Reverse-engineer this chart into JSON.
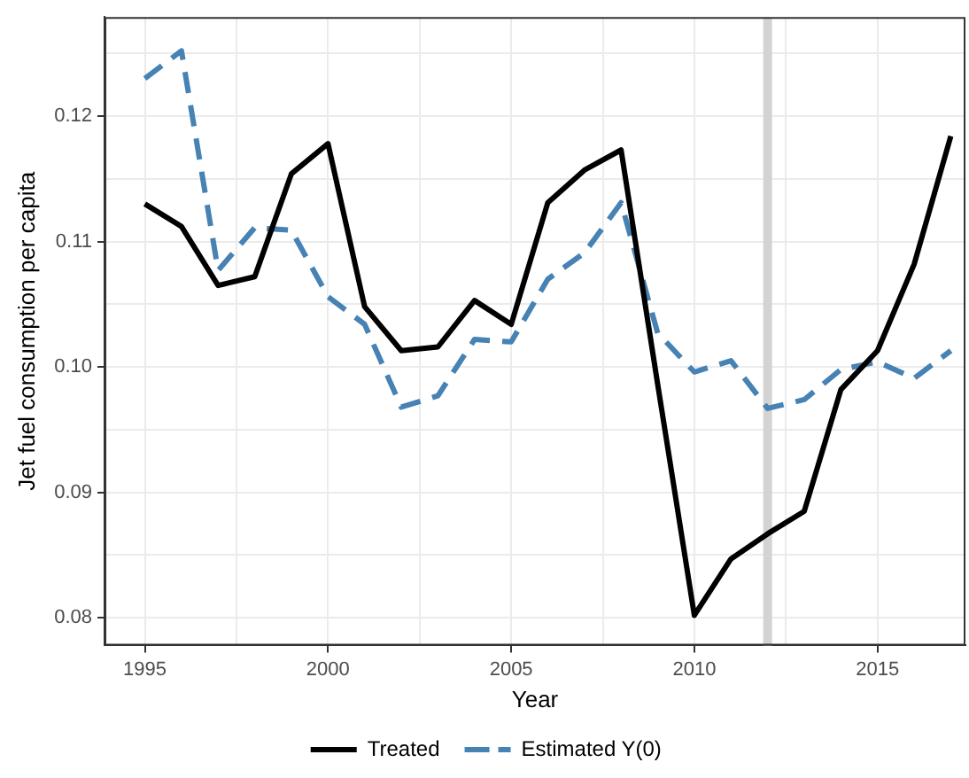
{
  "chart_data": {
    "type": "line",
    "xlabel": "Year",
    "ylabel": "Jet fuel consumption per capita",
    "x": [
      1995,
      1996,
      1997,
      1998,
      1999,
      2000,
      2001,
      2002,
      2003,
      2004,
      2005,
      2006,
      2007,
      2008,
      2009,
      2010,
      2011,
      2012,
      2013,
      2014,
      2015,
      2016,
      2017
    ],
    "series": [
      {
        "name": "Treated",
        "color": "#000000",
        "line_style": "solid",
        "values": [
          0.113,
          0.1112,
          0.1065,
          0.1072,
          0.1154,
          0.1178,
          0.1048,
          0.1013,
          0.1016,
          0.1053,
          0.1034,
          0.1131,
          0.1157,
          0.1173,
          0.0986,
          0.0802,
          0.0847,
          0.0867,
          0.0885,
          0.0982,
          0.1013,
          0.1082,
          0.1184
        ]
      },
      {
        "name": "Estimated Y(0)",
        "color": "#4682b4",
        "line_style": "dashed",
        "values": [
          0.123,
          0.1252,
          0.1077,
          0.1111,
          0.1109,
          0.1056,
          0.1034,
          0.0968,
          0.0977,
          0.1022,
          0.102,
          0.107,
          0.1091,
          0.1131,
          0.1027,
          0.0996,
          0.1005,
          0.0967,
          0.0974,
          0.0998,
          0.1004,
          0.0991,
          0.1013
        ]
      }
    ],
    "xlim": [
      1993.9,
      2017.4
    ],
    "xticks": [
      {
        "value": 1995,
        "label": "1995"
      },
      {
        "value": 1997.5,
        "label": null
      },
      {
        "value": 2000,
        "label": "2000"
      },
      {
        "value": 2002.5,
        "label": null
      },
      {
        "value": 2005,
        "label": "2005"
      },
      {
        "value": 2007.5,
        "label": null
      },
      {
        "value": 2010,
        "label": "2010"
      },
      {
        "value": 2012.5,
        "label": null
      },
      {
        "value": 2015,
        "label": "2015"
      }
    ],
    "ylim": [
      0.0778,
      0.1279
    ],
    "yticks": [
      {
        "value": 0.08,
        "label": "0.08"
      },
      {
        "value": 0.085,
        "label": null
      },
      {
        "value": 0.09,
        "label": "0.09"
      },
      {
        "value": 0.095,
        "label": null
      },
      {
        "value": 0.1,
        "label": "0.10"
      },
      {
        "value": 0.105,
        "label": null
      },
      {
        "value": 0.11,
        "label": "0.11"
      },
      {
        "value": 0.115,
        "label": null
      },
      {
        "value": 0.12,
        "label": "0.12"
      },
      {
        "value": 0.125,
        "label": null
      }
    ],
    "ref_lines": [
      {
        "axis": "x",
        "value": 2012,
        "color": "#d3d3d3"
      }
    ],
    "grid": true,
    "legend": "bottom",
    "marker": "none"
  }
}
